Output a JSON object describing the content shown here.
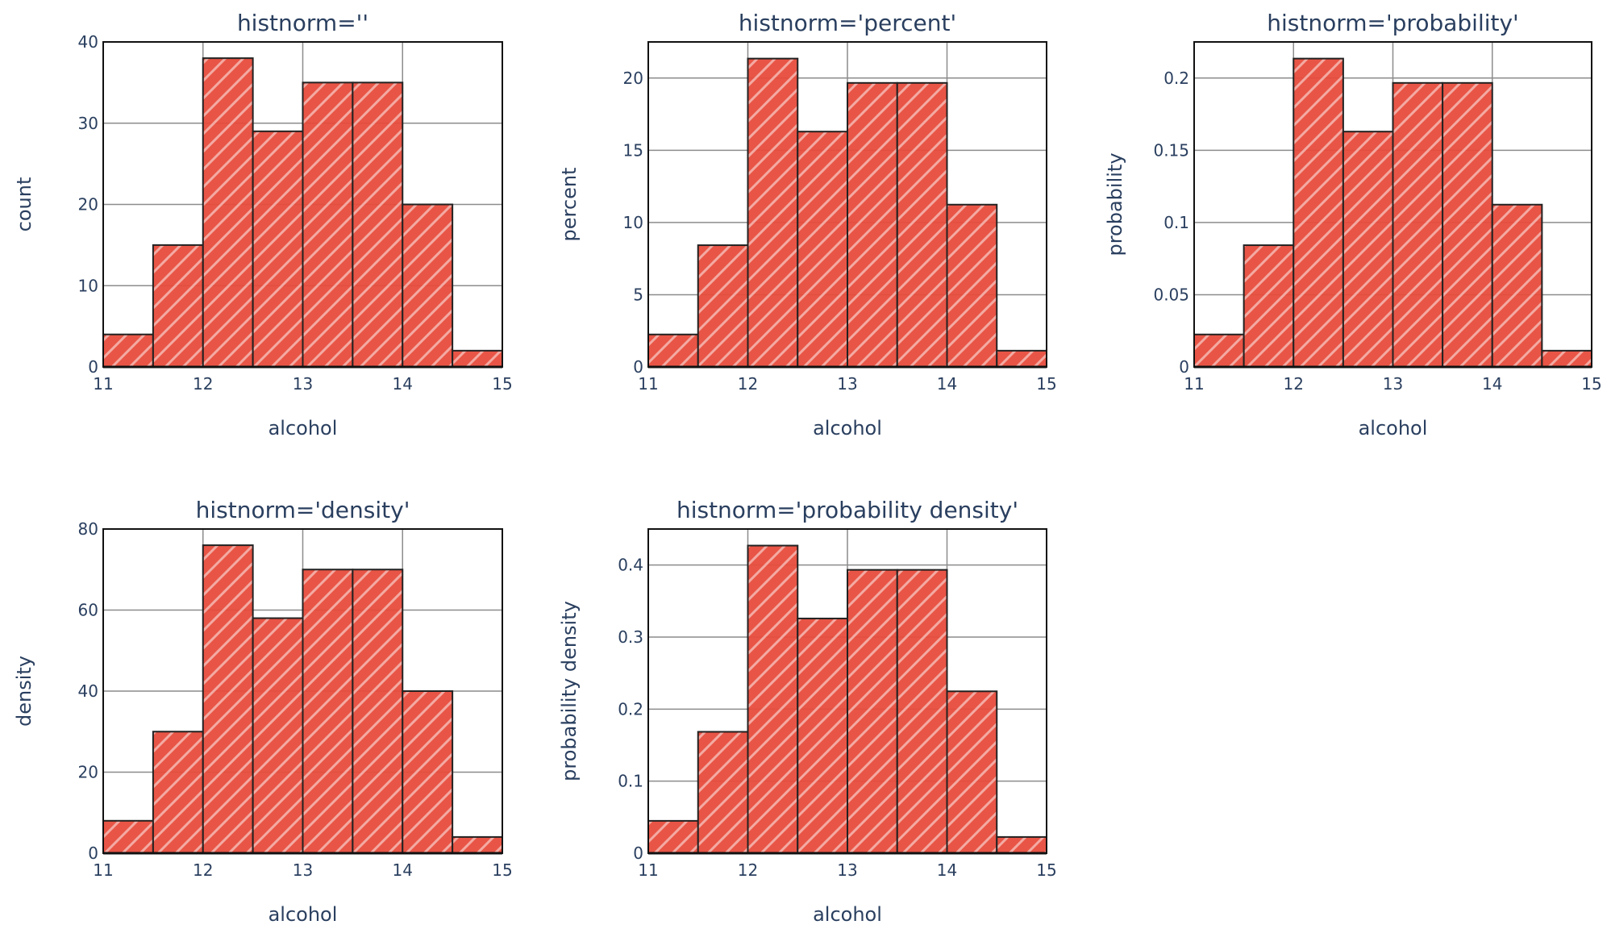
{
  "bar_color": "#e74c3c",
  "chart_data": [
    {
      "type": "bar",
      "title": "histnorm=''",
      "xlabel": "alcohol",
      "ylabel": "count",
      "xlim": [
        11,
        15
      ],
      "ylim": [
        0,
        40
      ],
      "bin_edges": [
        11,
        11.5,
        12,
        12.5,
        13,
        13.5,
        14,
        14.5,
        15
      ],
      "values": [
        4,
        15,
        38,
        29,
        35,
        35,
        20,
        2
      ],
      "xticks": [
        11,
        12,
        13,
        14,
        15
      ],
      "yticks": [
        0,
        10,
        20,
        30,
        40
      ],
      "ytick_labels": [
        "0",
        "10",
        "20",
        "30",
        "40"
      ],
      "grid": true,
      "pattern": "diagonal-hatch"
    },
    {
      "type": "bar",
      "title": "histnorm='percent'",
      "xlabel": "alcohol",
      "ylabel": "percent",
      "xlim": [
        11,
        15
      ],
      "ylim": [
        0,
        22.5
      ],
      "bin_edges": [
        11,
        11.5,
        12,
        12.5,
        13,
        13.5,
        14,
        14.5,
        15
      ],
      "values": [
        2.247,
        8.427,
        21.348,
        16.292,
        19.663,
        19.663,
        11.236,
        1.124
      ],
      "xticks": [
        11,
        12,
        13,
        14,
        15
      ],
      "yticks": [
        0,
        5,
        10,
        15,
        20
      ],
      "ytick_labels": [
        "0",
        "5",
        "10",
        "15",
        "20"
      ],
      "grid": true,
      "pattern": "diagonal-hatch"
    },
    {
      "type": "bar",
      "title": "histnorm='probability'",
      "xlabel": "alcohol",
      "ylabel": "probability",
      "xlim": [
        11,
        15
      ],
      "ylim": [
        0,
        0.225
      ],
      "bin_edges": [
        11,
        11.5,
        12,
        12.5,
        13,
        13.5,
        14,
        14.5,
        15
      ],
      "values": [
        0.02247,
        0.08427,
        0.21348,
        0.16292,
        0.19663,
        0.19663,
        0.11236,
        0.01124
      ],
      "xticks": [
        11,
        12,
        13,
        14,
        15
      ],
      "yticks": [
        0,
        0.05,
        0.1,
        0.15,
        0.2
      ],
      "ytick_labels": [
        "0",
        "0.05",
        "0.1",
        "0.15",
        "0.2"
      ],
      "grid": true,
      "pattern": "diagonal-hatch"
    },
    {
      "type": "bar",
      "title": "histnorm='density'",
      "xlabel": "alcohol",
      "ylabel": "density",
      "xlim": [
        11,
        15
      ],
      "ylim": [
        0,
        80
      ],
      "bin_edges": [
        11,
        11.5,
        12,
        12.5,
        13,
        13.5,
        14,
        14.5,
        15
      ],
      "values": [
        8,
        30,
        76,
        58,
        70,
        70,
        40,
        4
      ],
      "xticks": [
        11,
        12,
        13,
        14,
        15
      ],
      "yticks": [
        0,
        20,
        40,
        60,
        80
      ],
      "ytick_labels": [
        "0",
        "20",
        "40",
        "60",
        "80"
      ],
      "grid": true,
      "pattern": "diagonal-hatch"
    },
    {
      "type": "bar",
      "title": "histnorm='probability density'",
      "xlabel": "alcohol",
      "ylabel": "probability density",
      "xlim": [
        11,
        15
      ],
      "ylim": [
        0,
        0.45
      ],
      "bin_edges": [
        11,
        11.5,
        12,
        12.5,
        13,
        13.5,
        14,
        14.5,
        15
      ],
      "values": [
        0.0449,
        0.1685,
        0.427,
        0.3258,
        0.3933,
        0.3933,
        0.2247,
        0.0225
      ],
      "xticks": [
        11,
        12,
        13,
        14,
        15
      ],
      "yticks": [
        0,
        0.1,
        0.2,
        0.3,
        0.4
      ],
      "ytick_labels": [
        "0",
        "0.1",
        "0.2",
        "0.3",
        "0.4"
      ],
      "grid": true,
      "pattern": "diagonal-hatch"
    }
  ]
}
